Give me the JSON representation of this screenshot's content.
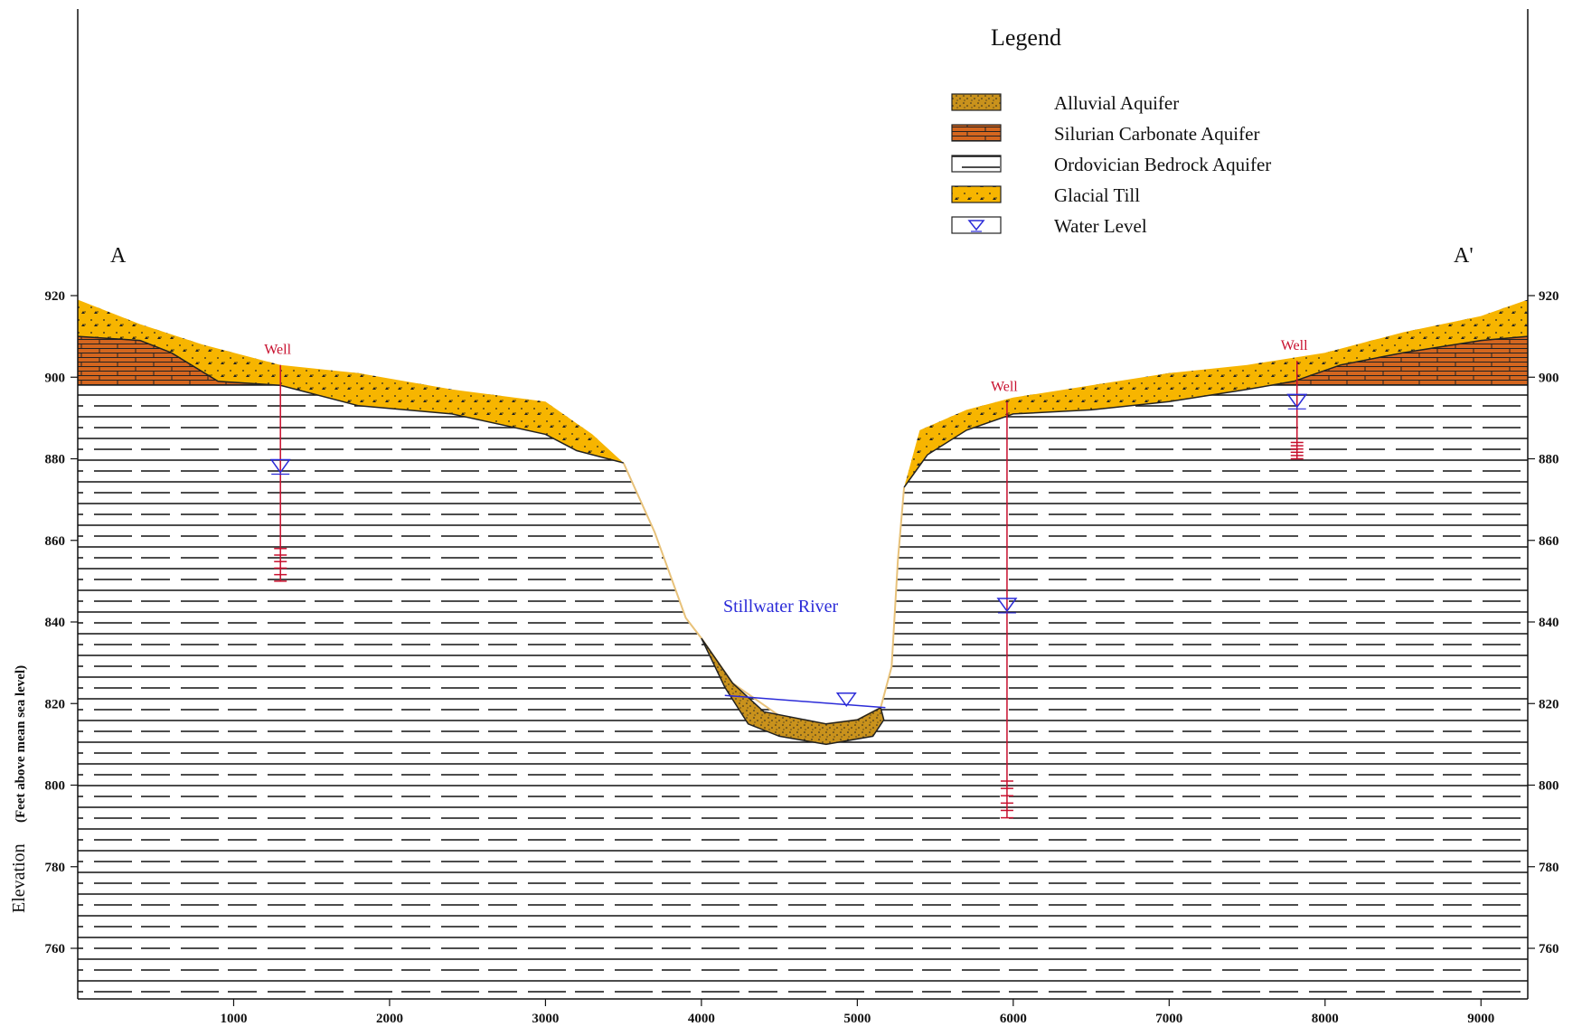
{
  "legend": {
    "title": "Legend",
    "items": [
      {
        "label": "Alluvial Aquifer",
        "swatch": "alluvial",
        "color": "#c9921c"
      },
      {
        "label": "Silurian Carbonate Aquifer",
        "swatch": "silurian",
        "color": "#d4661f"
      },
      {
        "label": "Ordovician Bedrock Aquifer",
        "swatch": "ordovician",
        "color": "#ffffff"
      },
      {
        "label": "Glacial Till",
        "swatch": "till",
        "color": "#f7b500"
      },
      {
        "label": "Water Level",
        "swatch": "water",
        "color": "#2b2bd8"
      }
    ]
  },
  "section": {
    "start_label": "A",
    "end_label": "A'"
  },
  "river": {
    "label": "Stillwater River",
    "x": 4930,
    "water_level": 819
  },
  "wells": [
    {
      "label": "Well",
      "x": 1300,
      "top": 903,
      "water_level": 878,
      "screen_top": 858,
      "screen_bottom": 850
    },
    {
      "label": "Well",
      "x": 5960,
      "top": 894,
      "water_level": 844,
      "screen_top": 801,
      "screen_bottom": 792
    },
    {
      "label": "Well",
      "x": 7820,
      "top": 904,
      "water_level": 894,
      "screen_top": 884,
      "screen_bottom": 880
    }
  ],
  "chart_data": {
    "type": "cross-section",
    "x_ticks": [
      1000,
      2000,
      3000,
      4000,
      5000,
      6000,
      7000,
      8000,
      9000
    ],
    "y_ticks": [
      760,
      780,
      800,
      820,
      840,
      860,
      880,
      900,
      920
    ],
    "xlim": [
      0,
      9300
    ],
    "ylim": [
      747,
      940
    ],
    "ylabel": "Elevation",
    "ylabel_sub": "(Feet above mean sea level)",
    "ground_surface": [
      [
        0,
        919
      ],
      [
        400,
        913
      ],
      [
        800,
        908
      ],
      [
        1300,
        903
      ],
      [
        1800,
        901
      ],
      [
        2400,
        897
      ],
      [
        3000,
        894
      ],
      [
        3300,
        886
      ],
      [
        3500,
        879
      ],
      [
        3700,
        862
      ],
      [
        3900,
        841
      ],
      [
        4000,
        836
      ],
      [
        4200,
        825
      ],
      [
        4500,
        817
      ],
      [
        4800,
        815
      ],
      [
        5000,
        816
      ],
      [
        5150,
        819
      ],
      [
        5220,
        829
      ],
      [
        5260,
        855
      ],
      [
        5300,
        873
      ],
      [
        5400,
        887
      ],
      [
        5700,
        892
      ],
      [
        6000,
        895
      ],
      [
        6500,
        898
      ],
      [
        7000,
        901
      ],
      [
        7500,
        903
      ],
      [
        8000,
        906
      ],
      [
        8500,
        911
      ],
      [
        9000,
        915
      ],
      [
        9300,
        919
      ]
    ],
    "till_base": [
      [
        3500,
        879
      ],
      [
        3200,
        882
      ],
      [
        3000,
        886
      ],
      [
        2400,
        891
      ],
      [
        1800,
        893
      ],
      [
        1300,
        898
      ],
      [
        900,
        899
      ],
      [
        600,
        906
      ],
      [
        400,
        909
      ],
      [
        0,
        910
      ]
    ],
    "till_base_right": [
      [
        5300,
        873
      ],
      [
        5450,
        881
      ],
      [
        5700,
        887
      ],
      [
        6000,
        891
      ],
      [
        6500,
        892
      ],
      [
        7000,
        894
      ],
      [
        7500,
        897
      ],
      [
        7800,
        899
      ],
      [
        8100,
        903
      ],
      [
        8500,
        906
      ],
      [
        9000,
        909
      ],
      [
        9300,
        910
      ]
    ],
    "silurian_left": {
      "x_end": 1300,
      "base": 898
    },
    "silurian_right": {
      "x_start": 7800,
      "base": 898
    },
    "alluvial": [
      [
        4000,
        836
      ],
      [
        4200,
        825
      ],
      [
        4400,
        818
      ],
      [
        4800,
        815
      ],
      [
        5000,
        816
      ],
      [
        5150,
        819
      ],
      [
        5170,
        816
      ],
      [
        5100,
        812
      ],
      [
        4800,
        810
      ],
      [
        4500,
        812
      ],
      [
        4300,
        815
      ],
      [
        4150,
        824
      ],
      [
        4050,
        832
      ]
    ]
  }
}
